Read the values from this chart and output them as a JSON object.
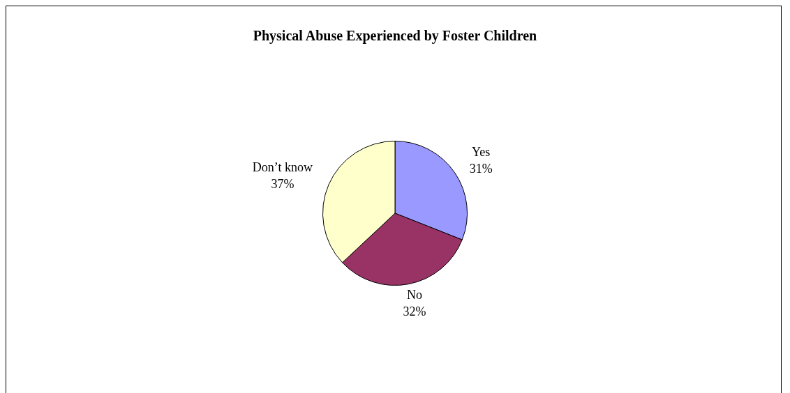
{
  "chart_data": {
    "type": "pie",
    "title": "Physical Abuse Experienced by Foster Children",
    "categories": [
      "Yes",
      "No",
      "Don’t know"
    ],
    "values": [
      31,
      32,
      37
    ],
    "colors": [
      "#9999ff",
      "#993366",
      "#ffffcc"
    ],
    "value_labels": [
      "31%",
      "32%",
      "37%"
    ],
    "legend": false
  }
}
